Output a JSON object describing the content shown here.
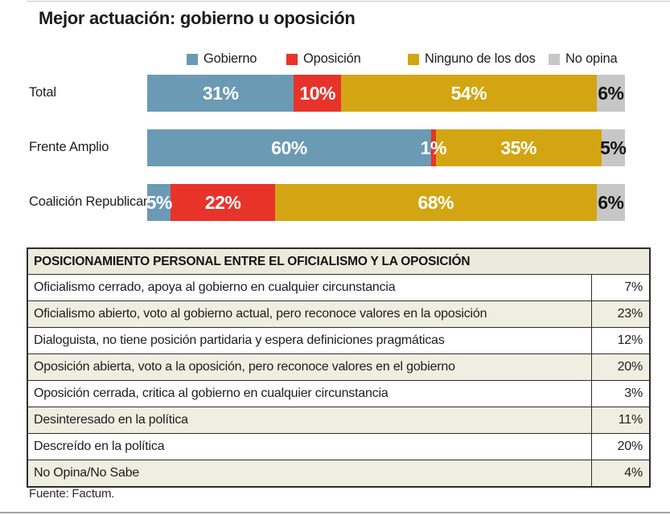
{
  "title": "Mejor actuación: gobierno u oposición",
  "source": "Fuente: Factum.",
  "chart_data": {
    "type": "bar",
    "subtype": "horizontal-stacked",
    "title": "Mejor actuación: gobierno u oposición",
    "categories": [
      "Total",
      "Frente Amplio",
      "Coalición Republicana"
    ],
    "series": [
      {
        "name": "Gobierno",
        "color": "#6b9ab5",
        "text_color": "#ffffff",
        "values": [
          31,
          60,
          5
        ]
      },
      {
        "name": "Oposición",
        "color": "#e8332a",
        "text_color": "#ffffff",
        "values": [
          10,
          1,
          22
        ]
      },
      {
        "name": "Ninguno de los dos",
        "color": "#d3a512",
        "text_color": "#ffffff",
        "values": [
          54,
          35,
          68
        ]
      },
      {
        "name": "No opina",
        "color": "#c7c7c7",
        "text_color": "#151515",
        "values": [
          6,
          5,
          6
        ]
      }
    ],
    "value_suffix": "%",
    "legend_position": "top",
    "grid": false
  },
  "table": {
    "header": "POSICIONAMIENTO PERSONAL ENTRE EL OFICIALISMO Y LA OPOSICIÓN",
    "rows": [
      {
        "label": "Oficialismo cerrado, apoya al gobierno en cualquier circunstancia",
        "value": "7%"
      },
      {
        "label": "Oficialismo abierto, voto al gobierno actual, pero reconoce valores en la oposición",
        "value": "23%"
      },
      {
        "label": "Dialoguista, no tiene posición partidaria y espera definiciones pragmáticas",
        "value": "12%"
      },
      {
        "label": "Oposición abierta, voto a la oposición, pero reconoce valores en el gobierno",
        "value": "20%"
      },
      {
        "label": "Oposición cerrada, critica al gobierno en cualquier circunstancia",
        "value": "3%"
      },
      {
        "label": "Desinteresado en la política",
        "value": "11%"
      },
      {
        "label": "Descreído en la política",
        "value": "20%"
      },
      {
        "label": "No Opina/No Sabe",
        "value": "4%"
      }
    ]
  }
}
